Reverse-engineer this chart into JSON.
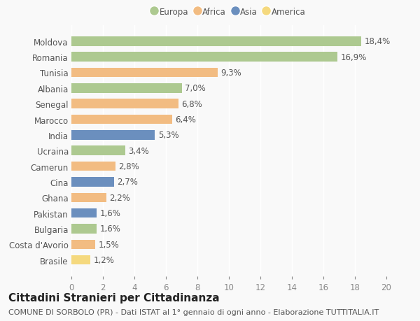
{
  "countries": [
    "Moldova",
    "Romania",
    "Tunisia",
    "Albania",
    "Senegal",
    "Marocco",
    "India",
    "Ucraina",
    "Camerun",
    "Cina",
    "Ghana",
    "Pakistan",
    "Bulgaria",
    "Costa d'Avorio",
    "Brasile"
  ],
  "values": [
    18.4,
    16.9,
    9.3,
    7.0,
    6.8,
    6.4,
    5.3,
    3.4,
    2.8,
    2.7,
    2.2,
    1.6,
    1.6,
    1.5,
    1.2
  ],
  "labels": [
    "18,4%",
    "16,9%",
    "9,3%",
    "7,0%",
    "6,8%",
    "6,4%",
    "5,3%",
    "3,4%",
    "2,8%",
    "2,7%",
    "2,2%",
    "1,6%",
    "1,6%",
    "1,5%",
    "1,2%"
  ],
  "continents": [
    "Europa",
    "Europa",
    "Africa",
    "Europa",
    "Africa",
    "Africa",
    "Asia",
    "Europa",
    "Africa",
    "Asia",
    "Africa",
    "Asia",
    "Europa",
    "Africa",
    "America"
  ],
  "continent_colors": {
    "Europa": "#adc990",
    "Africa": "#f2bc82",
    "Asia": "#6b8fbe",
    "America": "#f5d97e"
  },
  "legend_order": [
    "Europa",
    "Africa",
    "Asia",
    "America"
  ],
  "xlim": [
    0,
    20
  ],
  "xticks": [
    0,
    2,
    4,
    6,
    8,
    10,
    12,
    14,
    16,
    18,
    20
  ],
  "title": "Cittadini Stranieri per Cittadinanza",
  "subtitle": "COMUNE DI SORBOLO (PR) - Dati ISTAT al 1° gennaio di ogni anno - Elaborazione TUTTITALIA.IT",
  "background_color": "#f9f9f9",
  "bar_height": 0.6,
  "label_fontsize": 8.5,
  "title_fontsize": 11,
  "subtitle_fontsize": 8
}
